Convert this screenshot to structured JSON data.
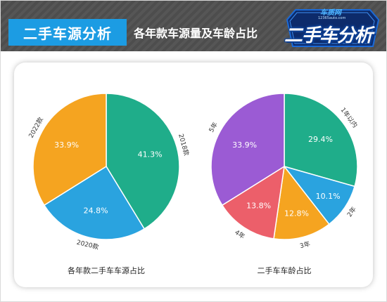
{
  "header": {
    "title": "二手车源分析",
    "subtitle": "各年款车源量及车龄占比",
    "logo_site": "车质网",
    "logo_url": "12365auto.com",
    "logo_text": "二手车分析"
  },
  "colors": {
    "green": "#1fad8a",
    "blue": "#2aa3df",
    "orange": "#f5a420",
    "red": "#ec5f6a",
    "purple": "#9b5bd4",
    "title_blue": "#1c9ce3",
    "header_gray": "#565656"
  },
  "chart_data": [
    {
      "type": "pie",
      "title": "各年款二手车车源占比",
      "categories": [
        "2018款",
        "2020款",
        "2022款"
      ],
      "values": [
        41.3,
        24.8,
        33.9
      ],
      "labels": [
        "41.3%",
        "24.8%",
        "33.9%"
      ],
      "colors": [
        "#1fad8a",
        "#2aa3df",
        "#f5a420"
      ]
    },
    {
      "type": "pie",
      "title": "二手车车龄占比",
      "categories": [
        "1年以内",
        "2年",
        "3年",
        "4年",
        "5年"
      ],
      "values": [
        29.4,
        10.1,
        12.8,
        13.8,
        33.9
      ],
      "labels": [
        "29.4%",
        "10.1%",
        "12.8%",
        "13.8%",
        "33.9%"
      ],
      "colors": [
        "#1fad8a",
        "#2aa3df",
        "#f5a420",
        "#ec5f6a",
        "#9b5bd4"
      ]
    }
  ]
}
